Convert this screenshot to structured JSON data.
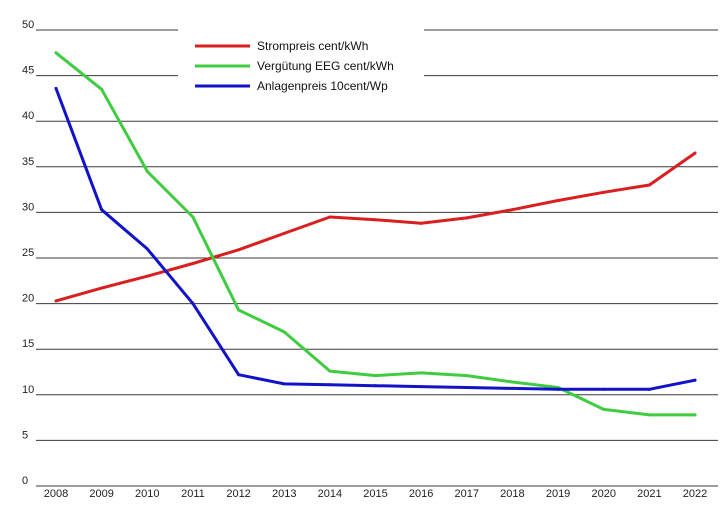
{
  "chart_data": {
    "type": "line",
    "x": [
      2008,
      2009,
      2010,
      2011,
      2012,
      2013,
      2014,
      2015,
      2016,
      2017,
      2018,
      2019,
      2020,
      2021,
      2022
    ],
    "x_tick_labels": [
      "2008",
      "2009",
      "2010",
      "2011",
      "2012",
      "2013",
      "2014",
      "2015",
      "2016",
      "2017",
      "2018",
      "2019",
      "2020",
      "2021",
      "2022"
    ],
    "y_tick_labels": [
      "0",
      "5",
      "10",
      "15",
      "20",
      "25",
      "30",
      "35",
      "40",
      "45",
      "50"
    ],
    "ylim": [
      0,
      50
    ],
    "grid": "horizontal",
    "legend_position": "top",
    "series": [
      {
        "name": "Strompreis cent/kWh",
        "color": "#d91f1f",
        "values": [
          20.3,
          21.7,
          23.0,
          24.4,
          25.9,
          27.7,
          29.5,
          29.2,
          28.8,
          29.4,
          30.3,
          31.3,
          32.2,
          33.0,
          36.5
        ]
      },
      {
        "name": "Vergütung EEG cent/kWh",
        "color": "#3fcc3f",
        "values": [
          47.5,
          43.5,
          34.5,
          29.5,
          19.3,
          16.9,
          12.6,
          12.1,
          12.4,
          12.1,
          11.4,
          10.8,
          8.4,
          7.8,
          7.8
        ]
      },
      {
        "name": "Anlagenpreis 10cent/Wp",
        "color": "#1212c8",
        "values": [
          43.6,
          30.3,
          26.0,
          20.0,
          12.2,
          11.2,
          11.1,
          11.0,
          10.9,
          10.8,
          10.7,
          10.6,
          10.6,
          10.6,
          11.6
        ]
      }
    ]
  }
}
